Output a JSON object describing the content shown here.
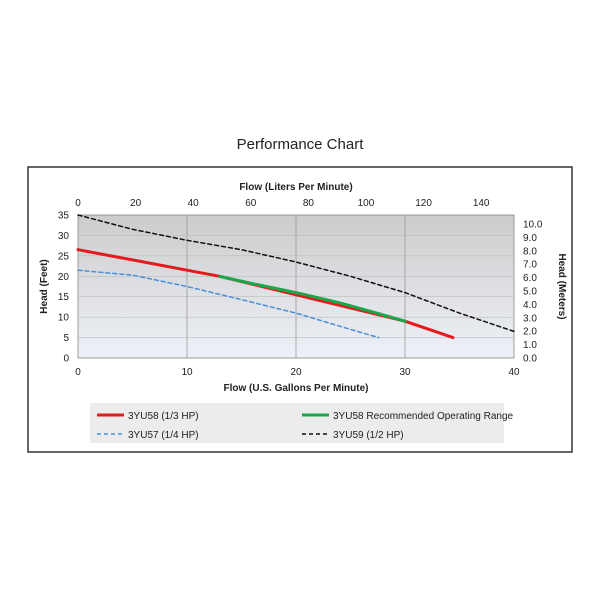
{
  "chart_data": {
    "type": "line",
    "title": "Performance Chart",
    "xlabel": "Flow (U.S. Gallons Per Minute)",
    "x2label": "Flow (Liters Per Minute)",
    "ylabel": "Head (Feet)",
    "y2label": "Head (Meters)",
    "xlim": [
      0,
      40
    ],
    "ylim": [
      0,
      35
    ],
    "x2lim": [
      0,
      151.4
    ],
    "y2lim": [
      0,
      10.668
    ],
    "xticks": [
      0,
      10,
      20,
      30,
      40
    ],
    "yticks": [
      0,
      5,
      10,
      15,
      20,
      25,
      30,
      35
    ],
    "x2ticks": [
      0,
      20,
      40,
      60,
      80,
      100,
      120,
      140
    ],
    "y2ticks": [
      "0.0",
      "1.0",
      "2.0",
      "3.0",
      "4.0",
      "5.0",
      "6.0",
      "7.0",
      "8.0",
      "9.0",
      "10.0"
    ],
    "grid": true,
    "legend_position": "bottom",
    "series": [
      {
        "name": "3YU58 (1/3 HP)",
        "color": "#e41a1c",
        "dash": "solid",
        "x": [
          0,
          5,
          10,
          13,
          30,
          34.4
        ],
        "y": [
          26.5,
          24,
          21.5,
          20,
          9,
          5
        ]
      },
      {
        "name": "3YU58 Recommended Operating Range",
        "color": "#1aa64a",
        "dash": "solid",
        "x": [
          13,
          16,
          20,
          24,
          27,
          30
        ],
        "y": [
          20,
          18.2,
          16,
          13.5,
          11.3,
          9
        ]
      },
      {
        "name": "3YU57 (1/4 HP)",
        "color": "#4a8fd9",
        "dash": "dash",
        "x": [
          0,
          5,
          10,
          15,
          20,
          25,
          27.6
        ],
        "y": [
          21.5,
          20.3,
          17.5,
          14.3,
          11,
          7,
          5
        ]
      },
      {
        "name": "3YU59 (1/2 HP)",
        "color": "#111111",
        "dash": "dash",
        "x": [
          0,
          5,
          10,
          15,
          20,
          25,
          30,
          35,
          40
        ],
        "y": [
          35,
          31.5,
          28.8,
          26.5,
          23.5,
          20,
          16,
          11,
          6.5
        ]
      }
    ]
  }
}
